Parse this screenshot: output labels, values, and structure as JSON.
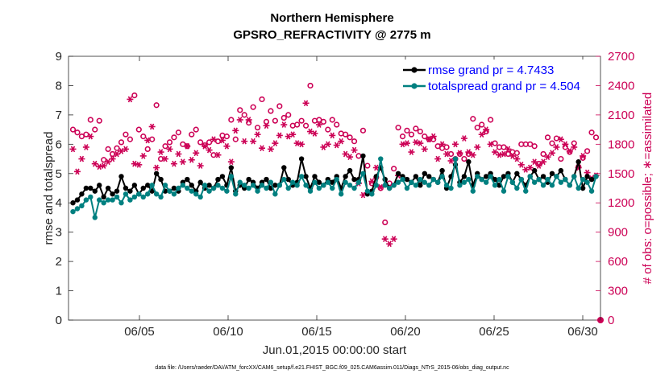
{
  "chart_data": {
    "type": "line",
    "title_line1": "Northern Hemisphere",
    "title_line2": "GPSRO_REFRACTIVITY @ 2775 m",
    "xlabel": "Jun.01,2015 00:00:00 start",
    "ylabel_left": "rmse and totalspread",
    "ylabel_right": "# of obs: o=possible; ∗=assimilated",
    "xlim": [
      1,
      31
    ],
    "ylim_left": [
      0,
      9
    ],
    "ylim_right": [
      0,
      2700
    ],
    "x_ticks": [
      5,
      10,
      15,
      20,
      25,
      30
    ],
    "x_tick_labels": [
      "06/05",
      "06/10",
      "06/15",
      "06/20",
      "06/25",
      "06/30"
    ],
    "y_ticks_left": [
      "0",
      "1",
      "2",
      "3",
      "4",
      "5",
      "6",
      "7",
      "8",
      "9"
    ],
    "y_ticks_right": [
      "0",
      "300",
      "600",
      "900",
      "1200",
      "1500",
      "1800",
      "2100",
      "2400",
      "2700"
    ],
    "legend": [
      {
        "name": "rmse grand pr = 4.7433",
        "color": "#000000"
      },
      {
        "name": "totalspread grand pr = 4.504",
        "color": "#008080"
      }
    ],
    "series": [
      {
        "name": "rmse",
        "color": "#000000",
        "axis": "left",
        "values": [
          4.0,
          4.1,
          4.3,
          4.5,
          4.5,
          4.4,
          4.6,
          4.2,
          4.5,
          4.3,
          4.4,
          4.9,
          4.5,
          4.4,
          4.6,
          4.3,
          4.5,
          4.6,
          4.4,
          5.0,
          4.8,
          4.4,
          4.4,
          4.5,
          4.4,
          4.7,
          4.8,
          4.6,
          4.4,
          4.7,
          4.5,
          4.6,
          4.5,
          4.8,
          4.9,
          4.6,
          5.2,
          4.4,
          4.6,
          4.5,
          4.8,
          4.7,
          4.5,
          4.7,
          4.8,
          4.5,
          4.6,
          4.6,
          5.2,
          4.8,
          4.6,
          4.7,
          5.5,
          4.9,
          4.5,
          4.9,
          4.7,
          4.6,
          4.8,
          4.7,
          4.9,
          4.5,
          4.9,
          5.1,
          4.8,
          4.8,
          5.6,
          4.3,
          4.4,
          4.9,
          5.2,
          4.8,
          4.5,
          4.6,
          5.0,
          4.9,
          4.8,
          4.7,
          4.9,
          4.6,
          5.0,
          4.9,
          4.8,
          4.7,
          5.1,
          4.5,
          4.9,
          5.3,
          4.7,
          4.9,
          5.4,
          4.6,
          5.0,
          4.8,
          4.9,
          5.0,
          4.8,
          4.6,
          4.9,
          5.0,
          4.7,
          5.0,
          4.8,
          4.6,
          4.9,
          5.1,
          4.8,
          4.9,
          4.7,
          5.0,
          4.9,
          5.1,
          4.8,
          4.6,
          4.9,
          5.4,
          4.5,
          4.9,
          4.8,
          4.9
        ]
      },
      {
        "name": "totalspread",
        "color": "#008080",
        "axis": "left",
        "values": [
          3.7,
          3.8,
          3.9,
          4.1,
          4.2,
          3.5,
          4.1,
          4.0,
          4.1,
          4.1,
          4.2,
          4.0,
          4.3,
          4.1,
          4.2,
          4.3,
          4.2,
          4.3,
          4.6,
          4.3,
          4.2,
          4.6,
          4.4,
          4.3,
          4.5,
          4.6,
          4.5,
          4.4,
          4.3,
          4.2,
          4.6,
          4.4,
          4.5,
          4.6,
          4.5,
          4.4,
          4.9,
          4.3,
          4.7,
          4.6,
          4.5,
          4.6,
          4.4,
          4.6,
          4.5,
          4.7,
          4.3,
          4.6,
          4.8,
          4.5,
          4.7,
          4.6,
          4.9,
          4.6,
          4.4,
          4.7,
          4.5,
          4.6,
          4.7,
          4.5,
          4.8,
          4.3,
          4.7,
          4.6,
          4.5,
          4.7,
          5.0,
          4.4,
          4.3,
          4.6,
          5.5,
          4.6,
          4.5,
          4.6,
          4.7,
          4.8,
          4.5,
          4.7,
          4.6,
          4.8,
          4.7,
          4.6,
          4.8,
          4.7,
          4.9,
          4.6,
          4.5,
          5.5,
          4.6,
          4.7,
          4.8,
          4.4,
          4.9,
          4.8,
          4.7,
          4.9,
          4.6,
          4.8,
          4.4,
          4.9,
          4.7,
          4.5,
          4.8,
          4.4,
          4.9,
          4.7,
          4.8,
          4.6,
          4.8,
          4.6,
          4.9,
          4.7,
          4.8,
          4.6,
          4.9,
          4.5,
          4.8,
          4.7,
          4.4,
          4.9
        ]
      },
      {
        "name": "possible",
        "color": "#cc0055",
        "axis": "right",
        "marker": "o",
        "values": [
          1950,
          1920,
          1880,
          1900,
          2050,
          1950,
          2040,
          1640,
          1750,
          1700,
          1760,
          1820,
          1900,
          1850,
          2300,
          1950,
          1880,
          1750,
          1850,
          2200,
          1650,
          1780,
          1820,
          1870,
          1920,
          1800,
          1780,
          1900,
          1950,
          1820,
          1790,
          1820,
          1690,
          1830,
          1890,
          1880,
          2050,
          1850,
          2150,
          2100,
          2020,
          2180,
          1970,
          2260,
          2030,
          2140,
          2040,
          2190,
          2070,
          2100,
          1990,
          2000,
          2040,
          1990,
          2400,
          2040,
          2050,
          2030,
          1950,
          2050,
          2000,
          1910,
          1900,
          1870,
          1830,
          1680,
          1940,
          1580,
          1400,
          1460,
          1350,
          1000,
          1400,
          1550,
          1970,
          1880,
          1940,
          1900,
          1960,
          1930,
          1880,
          1850,
          1850,
          1780,
          1760,
          1770,
          1700,
          1650,
          1700,
          1650,
          1700,
          2060,
          1970,
          2000,
          1930,
          2050,
          1810,
          1770,
          1770,
          1700,
          1720,
          1710,
          1800,
          1800,
          1800,
          1780,
          1600,
          1700,
          1870,
          1810,
          1860,
          1650,
          1770,
          1720,
          1810,
          1570,
          1660,
          1730,
          1920,
          1870
        ]
      },
      {
        "name": "assimilated",
        "color": "#cc0055",
        "axis": "right",
        "marker": "*",
        "values": [
          1750,
          1520,
          1650,
          1770,
          1880,
          1600,
          1570,
          1580,
          1620,
          1650,
          1700,
          1730,
          1750,
          2260,
          1600,
          1590,
          1680,
          1840,
          1980,
          1560,
          1720,
          1650,
          1750,
          1600,
          1700,
          1620,
          1780,
          1640,
          1710,
          1580,
          1780,
          1740,
          1850,
          1690,
          1840,
          1780,
          1620,
          1940,
          2050,
          1830,
          2050,
          1830,
          1900,
          1760,
          1990,
          1750,
          1810,
          1890,
          2000,
          1880,
          1900,
          1810,
          1800,
          2220,
          1930,
          1910,
          2000,
          1770,
          1800,
          1890,
          1790,
          1830,
          1700,
          1670,
          1740,
          1400,
          1280,
          1300,
          1420,
          1560,
          1360,
          830,
          780,
          830,
          1480,
          1800,
          1810,
          1720,
          1820,
          1810,
          1750,
          1850,
          1880,
          1650,
          1800,
          1700,
          1630,
          1800,
          1710,
          1860,
          1720,
          1690,
          1770,
          1900,
          1950,
          1800,
          1720,
          1690,
          1700,
          1750,
          1680,
          1650,
          1590,
          1540,
          1560,
          1620,
          1580,
          1620,
          1670,
          1710,
          1770,
          1850,
          1800,
          1730,
          1770,
          1560,
          1680,
          1510,
          1450,
          1480
        ]
      }
    ],
    "annotation_footer": "data file: /Users/raeder/DAI/ATM_forcXX/CAM6_setup/f.e21.FHIST_BGC.f09_025.CAM6assim.011/Diags_NTrS_2015-06/obs_diag_output.nc"
  }
}
